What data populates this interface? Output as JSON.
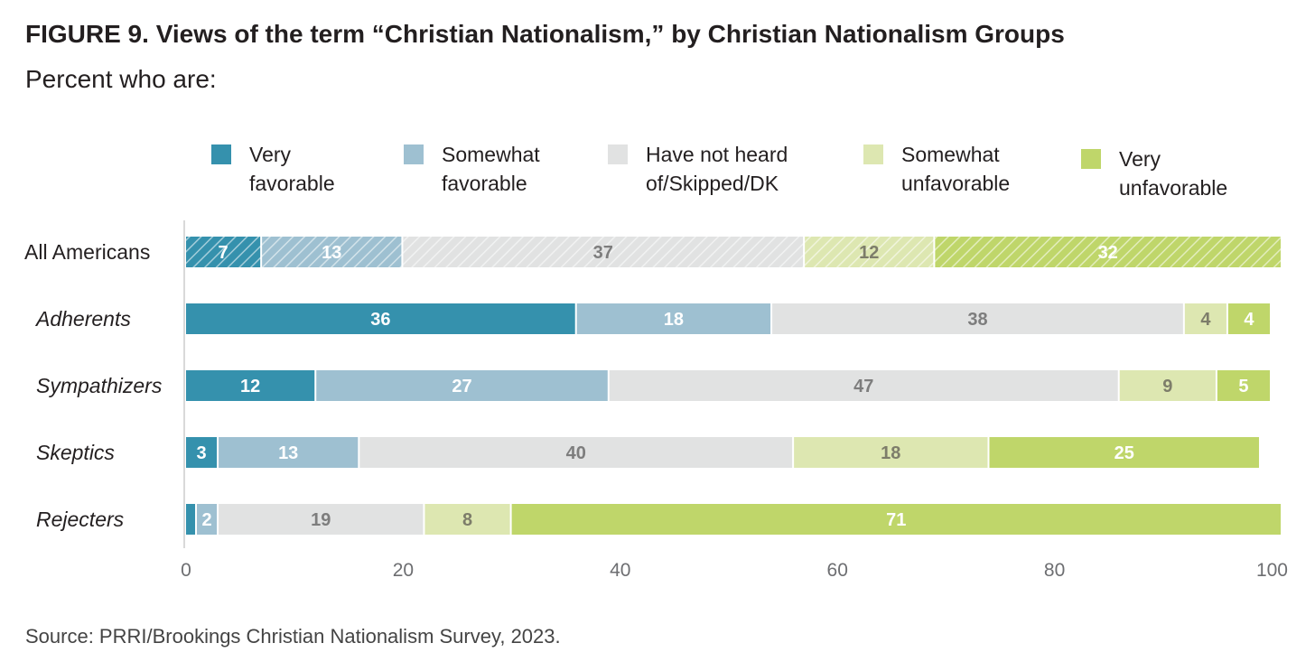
{
  "header": {
    "title": "FIGURE 9.  Views of the term “Christian Nationalism,” by Christian Nationalism Groups",
    "subtitle": "Percent who are:"
  },
  "footer": {
    "source": "Source: PRRI/Brookings Christian Nationalism Survey, 2023."
  },
  "chart_data": {
    "type": "bar",
    "orientation": "horizontal",
    "stacked": true,
    "categories": [
      "All Americans",
      "Adherents",
      "Sympathizers",
      "Skeptics",
      "Rejecters"
    ],
    "category_italic": [
      false,
      true,
      true,
      true,
      true
    ],
    "hatched_rows": [
      0
    ],
    "series": [
      {
        "name": "Very favorable",
        "legend_lines": [
          "Very",
          "favorable"
        ],
        "color": "#3591ad",
        "label_color": "#ffffff",
        "values": [
          7,
          36,
          12,
          3,
          1
        ]
      },
      {
        "name": "Somewhat favorable",
        "legend_lines": [
          "Somewhat",
          "favorable"
        ],
        "color": "#9ec0d1",
        "label_color": "#ffffff",
        "values": [
          13,
          18,
          27,
          13,
          2
        ]
      },
      {
        "name": "Have not heard of/Skipped/DK",
        "legend_lines": [
          "Have not heard",
          "of/Skipped/DK"
        ],
        "color": "#e1e2e2",
        "label_color": "#7d7d7d",
        "values": [
          37,
          38,
          47,
          40,
          19
        ]
      },
      {
        "name": "Somewhat unfavorable",
        "legend_lines": [
          "Somewhat",
          "unfavorable"
        ],
        "color": "#dde7b1",
        "label_color": "#7d7d6a",
        "values": [
          12,
          4,
          9,
          18,
          8
        ]
      },
      {
        "name": "Very unfavorable",
        "legend_lines": [
          "Very",
          "unfavorable"
        ],
        "color": "#bfd66a",
        "label_color": "#ffffff",
        "values": [
          32,
          4,
          5,
          25,
          71
        ]
      }
    ],
    "hidden_labels": [
      [
        4,
        0
      ]
    ],
    "xlim": [
      0,
      100
    ],
    "xticks": [
      0,
      20,
      40,
      60,
      80,
      100
    ],
    "legend_position": "top",
    "grid": false
  }
}
